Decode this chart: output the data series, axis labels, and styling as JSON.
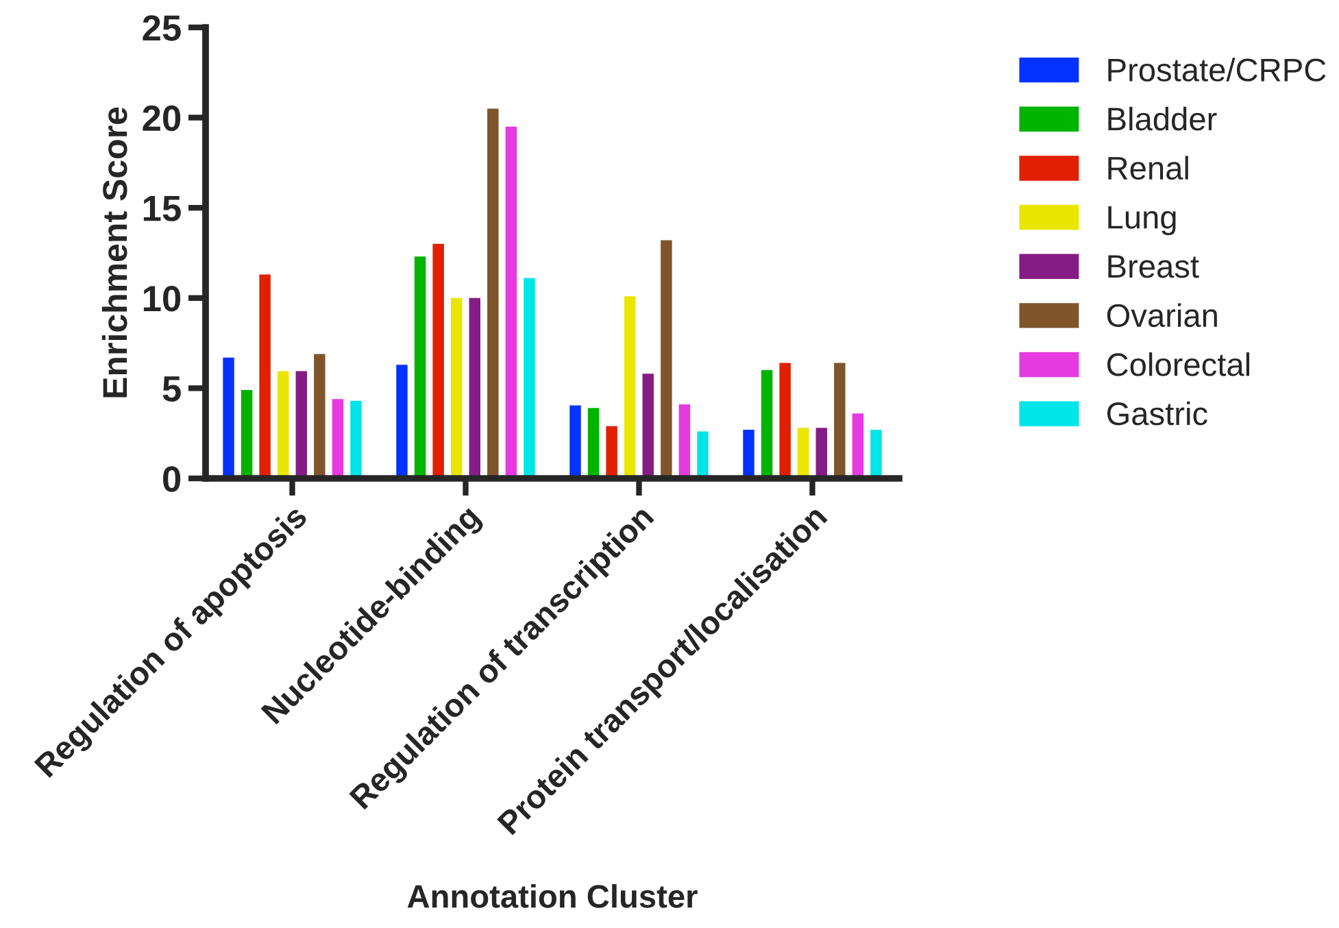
{
  "chart_data": {
    "type": "bar",
    "xlabel": "Annotation Cluster",
    "ylabel": "Enrichment Score",
    "categories": [
      "Regulation of apoptosis",
      "Nucleotide-binding",
      "Regulation of transcription",
      "Protein transport/localisation"
    ],
    "series": [
      {
        "name": "Prostate/CRPC",
        "color": "#0433ff",
        "values": [
          6.7,
          6.3,
          4.05,
          2.7
        ]
      },
      {
        "name": "Bladder",
        "color": "#00b400",
        "values": [
          4.9,
          12.3,
          3.9,
          6.0
        ]
      },
      {
        "name": "Renal",
        "color": "#e02000",
        "values": [
          11.3,
          13.0,
          2.9,
          6.4
        ]
      },
      {
        "name": "Lung",
        "color": "#ebe600",
        "values": [
          5.95,
          10.0,
          10.1,
          2.8
        ]
      },
      {
        "name": "Breast",
        "color": "#851c85",
        "values": [
          5.95,
          10.0,
          5.8,
          2.8
        ]
      },
      {
        "name": "Ovarian",
        "color": "#7f562c",
        "values": [
          6.9,
          20.5,
          13.2,
          6.4
        ]
      },
      {
        "name": "Colorectal",
        "color": "#e53ae0",
        "values": [
          4.4,
          19.5,
          4.1,
          3.6
        ]
      },
      {
        "name": "Gastric",
        "color": "#00e5e8",
        "values": [
          4.3,
          11.1,
          2.6,
          2.7
        ]
      }
    ],
    "ylim": [
      0,
      25
    ],
    "yticks": [
      0,
      5,
      10,
      15,
      20,
      25
    ],
    "grid": false,
    "legend": "top right"
  }
}
